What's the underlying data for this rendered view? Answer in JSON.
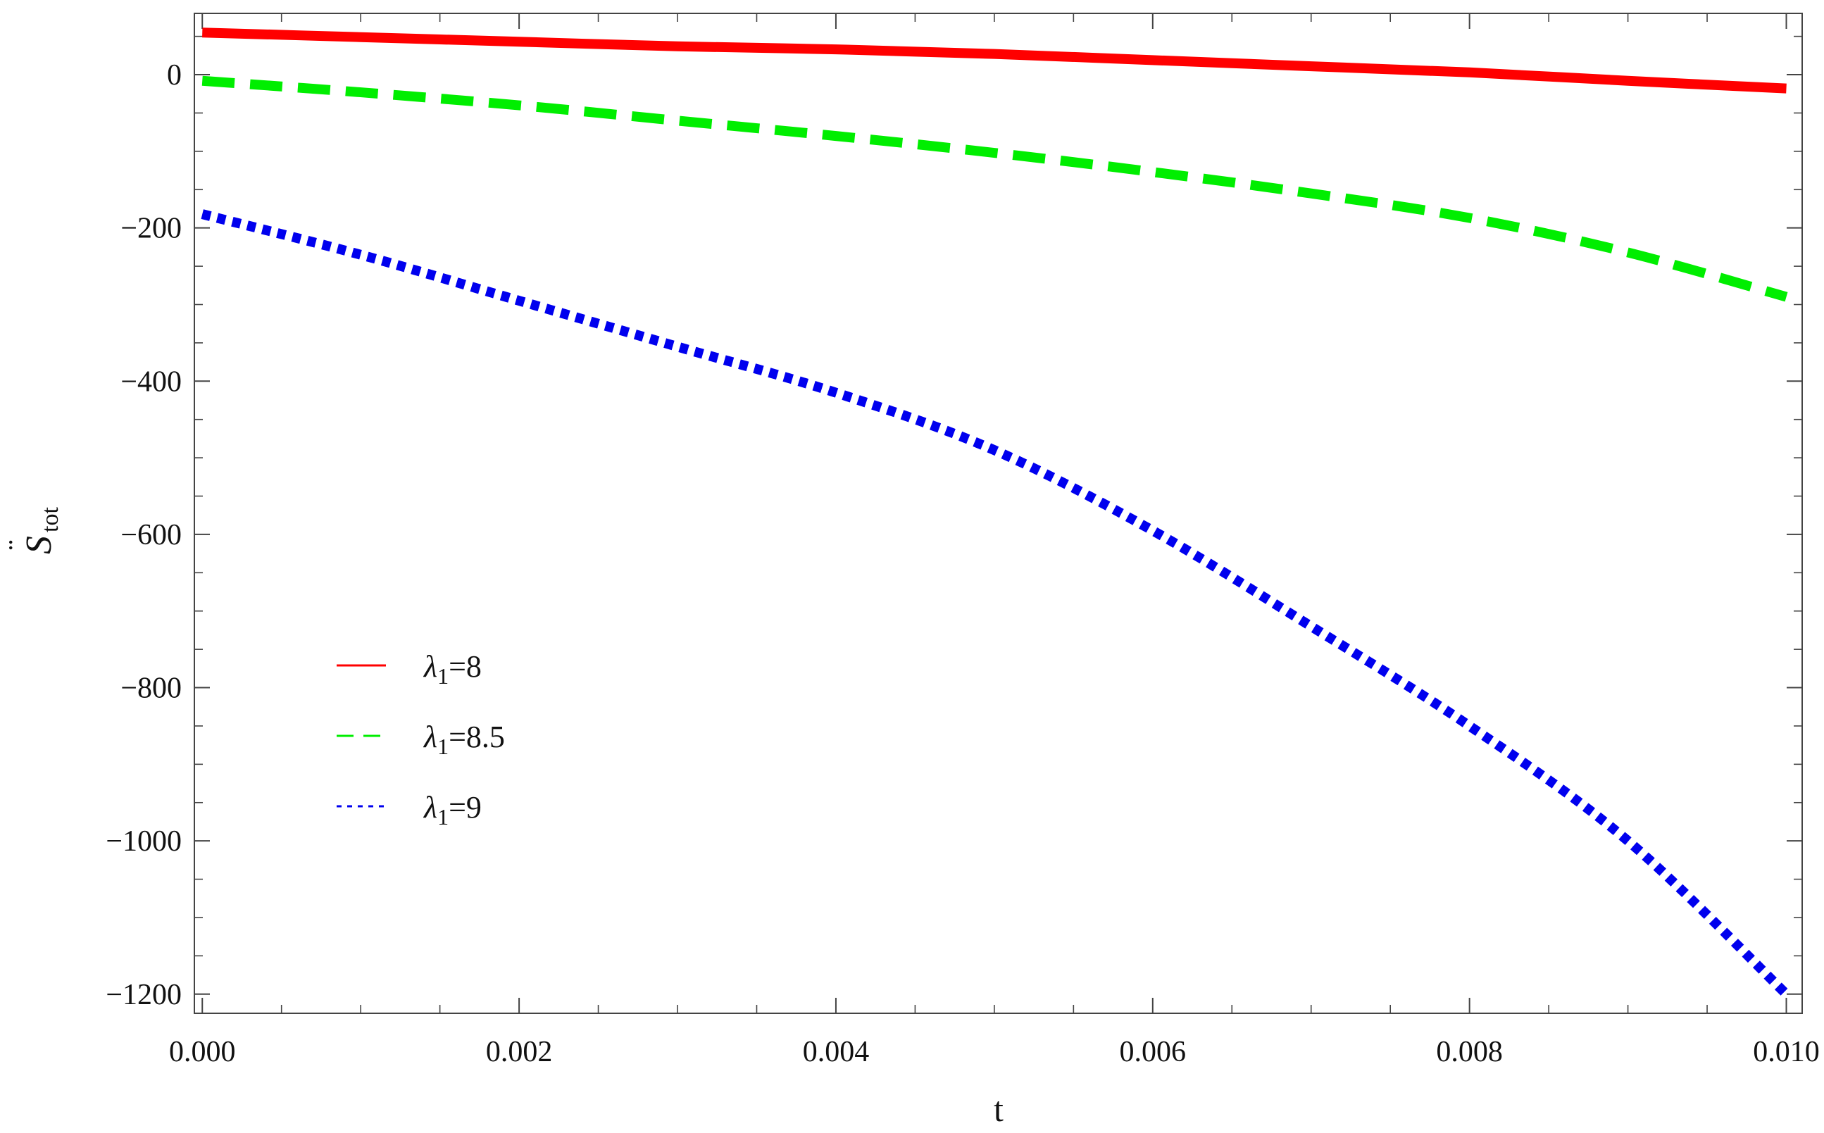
{
  "chart_data": {
    "type": "line",
    "xlabel": "t",
    "ylabel": {
      "base": "S",
      "accent": "¨",
      "subscript": "tot"
    },
    "xlim": [
      -5e-05,
      0.0101
    ],
    "ylim": [
      -1225,
      80
    ],
    "xticks": [
      0.0,
      0.002,
      0.004,
      0.006,
      0.008,
      0.01
    ],
    "xtick_labels": [
      "0.000",
      "0.002",
      "0.004",
      "0.006",
      "0.008",
      "0.010"
    ],
    "yticks": [
      0,
      -200,
      -400,
      -600,
      -800,
      -1000,
      -1200
    ],
    "ytick_labels": [
      "0",
      "−200",
      "−400",
      "−600",
      "−800",
      "−1000",
      "−1200"
    ],
    "grid": false,
    "legend_position": "lower-left",
    "x": [
      0.0,
      0.001,
      0.002,
      0.003,
      0.004,
      0.005,
      0.006,
      0.007,
      0.008,
      0.009,
      0.01
    ],
    "series": [
      {
        "name": "λ1=8",
        "label": {
          "symbol": "λ",
          "subscript": "1",
          "rest": "=8"
        },
        "color": "#ff0000",
        "dash": "solid",
        "values": [
          55,
          49,
          43,
          37,
          33,
          27,
          19,
          11,
          3,
          -8,
          -18
        ]
      },
      {
        "name": "λ1=8.5",
        "label": {
          "symbol": "λ",
          "subscript": "1",
          "rest": "=8.5"
        },
        "color": "#00ee00",
        "dash": "dashed",
        "values": [
          -8,
          -23,
          -40,
          -60,
          -80,
          -102,
          -127,
          -155,
          -187,
          -232,
          -290
        ]
      },
      {
        "name": "λ1=9",
        "label": {
          "symbol": "λ",
          "subscript": "1",
          "rest": "=9"
        },
        "color": "#0000ee",
        "dash": "dotted",
        "values": [
          -182,
          -235,
          -295,
          -355,
          -415,
          -490,
          -595,
          -720,
          -850,
          -1000,
          -1200
        ]
      }
    ]
  }
}
